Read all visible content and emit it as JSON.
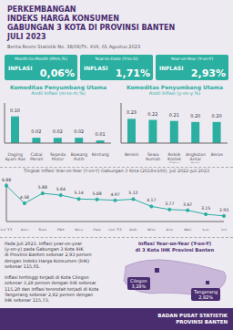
{
  "title": "PERKEMBANGAN\nINDEKS HARGA KONSUMEN\nGABUNGAN 3 KOTA DI PROVINSI BANTEN\nJULI 2023",
  "subtitle": "Berita Resmi Statistik No. 38/08/Th. XVII, 01 Agustus 2023",
  "annotations": [
    [
      "Month-to-Month (Mtm,%)",
      "INFLASI",
      "0,06%"
    ],
    [
      "Year-to-Date (Y-to-D)",
      "INFLASI",
      "1,71%"
    ],
    [
      "Year-on-Year (Y-on-Y)",
      "INFLASI",
      "2,93%"
    ],
    "Pada Juli 2023, Inflasi year-on-year\n(y-on-y) pada Gabungan 3 Kota IHK\ndi Provinsi Banten sebesar 2,93 persen\ndengan Indeks Harga Konsumen (IHK)\nsebesar 115,01.\n\nInflasi tertinggi terjadi di Kota Cilegon\nsebesar 3,28 persen dengan IHK sebesar\n115,20 dan inflasi terendah terjadi di Kota\nTangerang sebesar 2,82 persen dengan\nIHK sebesar 115,73.",
    "Inflasi Year-on-Year (Y-on-Y)\ndi 3 Kota IHK Provinsi Banten",
    "Cilegon\n3,28%",
    "Tangerang\n2,82%",
    "BADAN PUSAT STATISTIK\nPROVINSI BANTEN"
  ],
  "chart_data": [
    {
      "type": "bar",
      "title": "Komoditas Penyumbang Utama",
      "subtitle": "Andil Inflasi (m-to-m,%)",
      "categories": [
        "Daging\nAyam Ras",
        "Cabai\nMerah",
        "Sepeda\nMotor",
        "Bawang\nPutih",
        "Kentang"
      ],
      "values": [
        0.1,
        0.02,
        0.02,
        0.02,
        0.01
      ],
      "value_labels": [
        "0.10",
        "0.02",
        "0.02",
        "0.02",
        "0.01"
      ],
      "color": "#2aafa0",
      "ylim": [
        0,
        0.15
      ],
      "data_labels": true,
      "tick_labels": "x",
      "grid": false
    },
    {
      "type": "bar",
      "title": "Komoditas Penyumbang Utama",
      "subtitle": "Andil Inflasi (y-on-y,%)",
      "categories": [
        "Bensin",
        "Sewa\nRumah",
        "Rokok\nKretek\nFilter",
        "Angkutan\nAntar\nKota",
        "Beras"
      ],
      "values": [
        0.23,
        0.22,
        0.21,
        0.2,
        0.2
      ],
      "value_labels": [
        "0.23",
        "0.22",
        "0.21",
        "0.20",
        "0.20"
      ],
      "color": "#2aafa0",
      "ylim": [
        0,
        0.38
      ],
      "data_labels": true,
      "tick_labels": "x",
      "grid": false
    },
    {
      "type": "line",
      "title": "Tingkat Inflasi Year-on-Year (Y-on-Y) Gabungan 3 Kota (2018=100), Juli 2022-Juli 2023",
      "categories": [
        "Jul 22",
        "Agu",
        "Sep",
        "Okt",
        "Nov",
        "Des",
        "Jan 23",
        "Feb",
        "Mar",
        "Apr",
        "Mei",
        "Jun",
        "Jul"
      ],
      "values": [
        6.88,
        4.58,
        5.88,
        5.64,
        5.14,
        5.08,
        4.97,
        5.12,
        4.17,
        3.77,
        3.67,
        3.15,
        2.93
      ],
      "color": "#2aafa0",
      "marker": "circle",
      "ylim": [
        2.2,
        7.2
      ],
      "data_labels": true,
      "tick_labels": "x",
      "grid": false
    }
  ]
}
